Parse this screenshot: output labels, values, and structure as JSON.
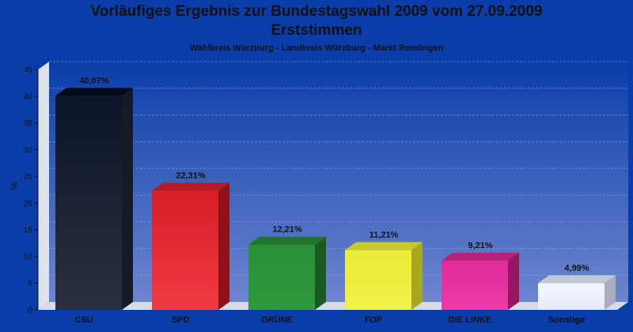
{
  "chart_data": {
    "type": "bar",
    "title": "Vorläufiges Ergebnis zur Bundestagswahl 2009 vom 27.09.2009",
    "title2": "Erststimmen",
    "subtitle": "Wahlkreis Würzburg - Landkreis Würzburg - Markt Remlingen",
    "ylabel": "%",
    "ylim": [
      0,
      45
    ],
    "yticks": [
      0,
      5,
      10,
      15,
      20,
      25,
      30,
      35,
      40,
      45
    ],
    "grid": true,
    "categories": [
      "CSU",
      "SPD",
      "GRÜNE",
      "FDP",
      "DIE LINKE",
      "Sonstige"
    ],
    "values": [
      40.07,
      22.31,
      12.21,
      11.21,
      9.21,
      4.99
    ],
    "value_labels": [
      "40,07%",
      "22,31%",
      "12,21%",
      "11,21%",
      "9,21%",
      "4,99%"
    ],
    "colors": [
      {
        "front_top": "#0b1428",
        "front_bottom": "#2a3040",
        "top": "#050a18",
        "side": "#141a28"
      },
      {
        "front_top": "#d81c28",
        "front_bottom": "#f03a44",
        "top": "#b81a24",
        "side": "#8e1018"
      },
      {
        "front_top": "#2a9038",
        "front_bottom": "#2c9a3a",
        "top": "#23742e",
        "side": "#1a5a22"
      },
      {
        "front_top": "#ecec3a",
        "front_bottom": "#f0f048",
        "top": "#c8c82a",
        "side": "#a8a820"
      },
      {
        "front_top": "#e02c98",
        "front_bottom": "#ee3aa8",
        "top": "#b82078",
        "side": "#941860"
      },
      {
        "front_top": "#f4f6fc",
        "front_bottom": "#e8ecf8",
        "top": "#c2c8d4",
        "side": "#a8aebc"
      }
    ],
    "background": "#0a3da8"
  }
}
